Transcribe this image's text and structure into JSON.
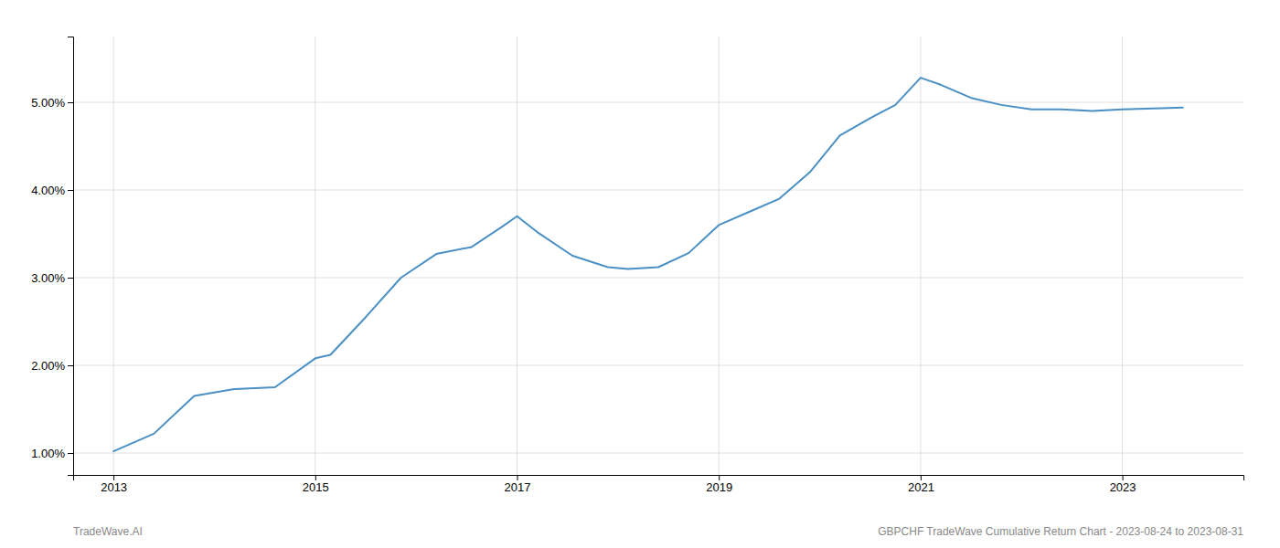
{
  "chart_data": {
    "type": "line",
    "x": [
      2013.0,
      2013.4,
      2013.8,
      2014.2,
      2014.6,
      2015.0,
      2015.15,
      2015.5,
      2015.85,
      2016.2,
      2016.55,
      2016.85,
      2017.0,
      2017.2,
      2017.55,
      2017.9,
      2018.1,
      2018.4,
      2018.7,
      2019.0,
      2019.3,
      2019.6,
      2019.9,
      2020.2,
      2020.5,
      2020.75,
      2021.0,
      2021.2,
      2021.5,
      2021.8,
      2022.1,
      2022.4,
      2022.7,
      2023.0,
      2023.3,
      2023.6
    ],
    "values": [
      1.02,
      1.22,
      1.65,
      1.73,
      1.75,
      2.08,
      2.12,
      2.55,
      3.0,
      3.27,
      3.35,
      3.58,
      3.7,
      3.52,
      3.25,
      3.12,
      3.1,
      3.12,
      3.28,
      3.6,
      3.75,
      3.9,
      4.2,
      4.62,
      4.82,
      4.97,
      5.28,
      5.2,
      5.05,
      4.97,
      4.92,
      4.92,
      4.9,
      4.92,
      4.93,
      4.94
    ],
    "color": "#4a90c4",
    "xlim": [
      2012.6,
      2024.2
    ],
    "ylim": [
      0.75,
      5.75
    ],
    "xticks": [
      2013,
      2015,
      2017,
      2019,
      2021,
      2023
    ],
    "yticks": [
      {
        "value": 1.0,
        "label": "1.00%"
      },
      {
        "value": 2.0,
        "label": "2.00%"
      },
      {
        "value": 3.0,
        "label": "3.00%"
      },
      {
        "value": 4.0,
        "label": "4.00%"
      },
      {
        "value": 5.0,
        "label": "5.00%"
      }
    ],
    "grid": true,
    "annotations": [
      "TradeWave.AI",
      "GBPCHF TradeWave Cumulative Return Chart - 2023-08-24 to 2023-08-31"
    ]
  }
}
